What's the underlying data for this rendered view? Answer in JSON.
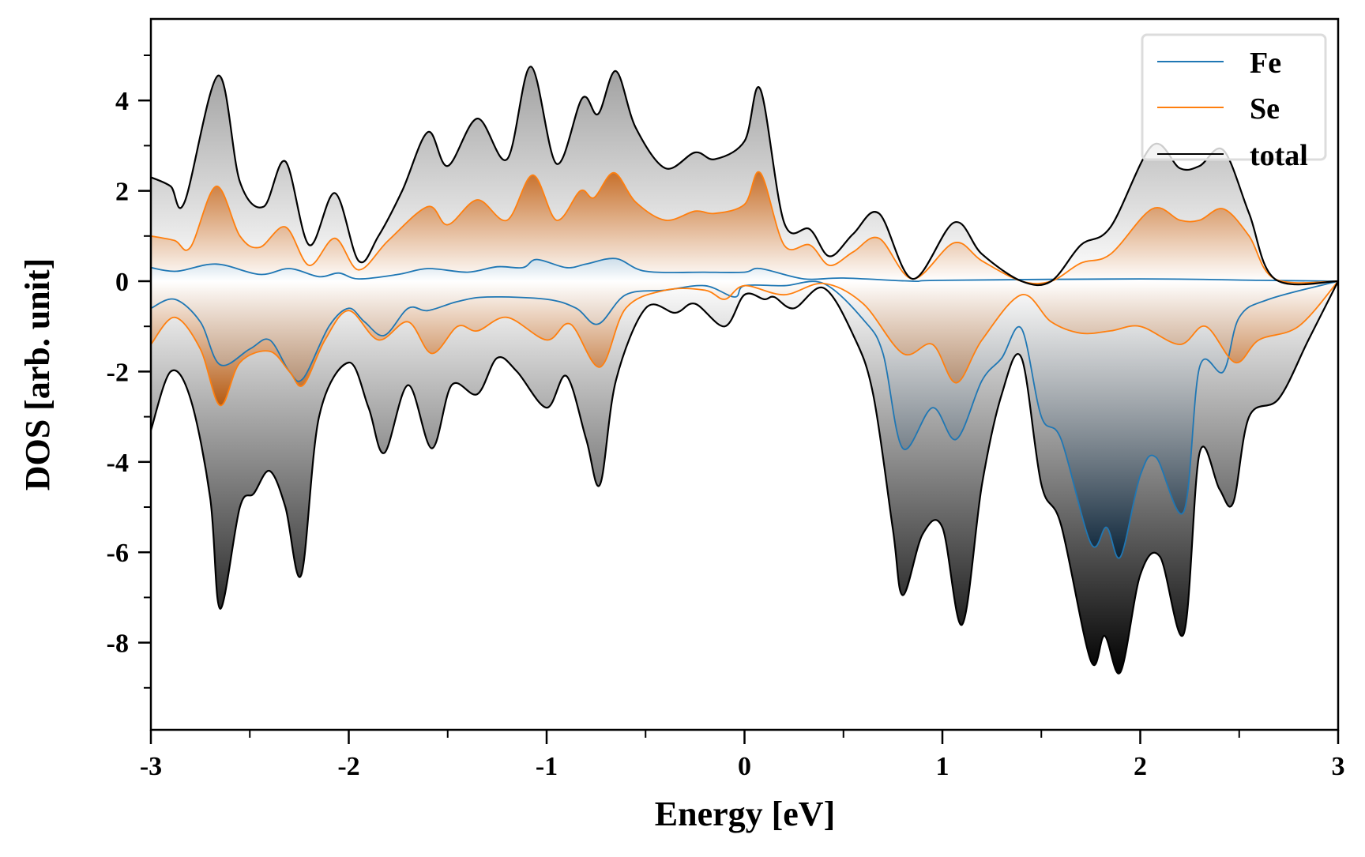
{
  "chart_data": {
    "type": "area",
    "xlabel": "Energy [eV]",
    "ylabel": "DOS [arb. unit]",
    "xlim": [
      -3,
      3
    ],
    "ylim": [
      -9.9,
      5.8
    ],
    "xticks": [
      -3,
      -2,
      -1,
      0,
      1,
      2,
      3
    ],
    "yticks": [
      -8,
      -6,
      -4,
      -2,
      0,
      2,
      4
    ],
    "grid": false,
    "legend_position": "top-right",
    "series": [
      {
        "name": "Fe",
        "color": "#1f77b4",
        "spin_up": [
          [
            -3,
            0.3
          ],
          [
            -2.87,
            0.22
          ],
          [
            -2.67,
            0.38
          ],
          [
            -2.45,
            0.15
          ],
          [
            -2.3,
            0.28
          ],
          [
            -2.15,
            0.1
          ],
          [
            -2.05,
            0.18
          ],
          [
            -1.95,
            0.05
          ],
          [
            -1.75,
            0.15
          ],
          [
            -1.6,
            0.28
          ],
          [
            -1.4,
            0.2
          ],
          [
            -1.25,
            0.32
          ],
          [
            -1.12,
            0.3
          ],
          [
            -1.05,
            0.48
          ],
          [
            -0.9,
            0.3
          ],
          [
            -0.8,
            0.38
          ],
          [
            -0.65,
            0.5
          ],
          [
            -0.5,
            0.22
          ],
          [
            -0.2,
            0.2
          ],
          [
            0,
            0.2
          ],
          [
            0.08,
            0.28
          ],
          [
            0.3,
            0.05
          ],
          [
            0.5,
            0.07
          ],
          [
            0.85,
            0.0
          ],
          [
            1.0,
            0.02
          ],
          [
            2.0,
            0.05
          ],
          [
            2.6,
            0.02
          ],
          [
            3,
            0
          ]
        ],
        "spin_down": [
          [
            -3,
            -0.6
          ],
          [
            -2.88,
            -0.4
          ],
          [
            -2.75,
            -0.9
          ],
          [
            -2.65,
            -1.85
          ],
          [
            -2.5,
            -1.5
          ],
          [
            -2.4,
            -1.3
          ],
          [
            -2.3,
            -2.0
          ],
          [
            -2.23,
            -2.15
          ],
          [
            -2.1,
            -1.0
          ],
          [
            -2.0,
            -0.6
          ],
          [
            -1.92,
            -0.9
          ],
          [
            -1.82,
            -1.2
          ],
          [
            -1.7,
            -0.6
          ],
          [
            -1.6,
            -0.65
          ],
          [
            -1.45,
            -0.45
          ],
          [
            -1.3,
            -0.35
          ],
          [
            -1.0,
            -0.4
          ],
          [
            -0.85,
            -0.6
          ],
          [
            -0.74,
            -0.95
          ],
          [
            -0.6,
            -0.3
          ],
          [
            -0.4,
            -0.2
          ],
          [
            -0.2,
            -0.1
          ],
          [
            -0.05,
            -0.35
          ],
          [
            0,
            -0.1
          ],
          [
            0.2,
            -0.1
          ],
          [
            0.4,
            -0.05
          ],
          [
            0.6,
            -0.85
          ],
          [
            0.7,
            -1.6
          ],
          [
            0.8,
            -3.7
          ],
          [
            0.95,
            -2.8
          ],
          [
            1.07,
            -3.5
          ],
          [
            1.2,
            -2.2
          ],
          [
            1.3,
            -1.7
          ],
          [
            1.4,
            -1.05
          ],
          [
            1.5,
            -3.0
          ],
          [
            1.6,
            -3.5
          ],
          [
            1.75,
            -5.8
          ],
          [
            1.83,
            -5.45
          ],
          [
            1.9,
            -6.1
          ],
          [
            2.0,
            -4.3
          ],
          [
            2.08,
            -3.9
          ],
          [
            2.22,
            -5.1
          ],
          [
            2.3,
            -1.9
          ],
          [
            2.42,
            -2.0
          ],
          [
            2.5,
            -0.8
          ],
          [
            2.65,
            -0.4
          ],
          [
            3,
            0
          ]
        ]
      },
      {
        "name": "Se",
        "color": "#ff7f0e",
        "spin_up": [
          [
            -3,
            1.0
          ],
          [
            -2.88,
            0.9
          ],
          [
            -2.8,
            0.75
          ],
          [
            -2.67,
            2.1
          ],
          [
            -2.55,
            1.0
          ],
          [
            -2.45,
            0.75
          ],
          [
            -2.32,
            1.2
          ],
          [
            -2.2,
            0.35
          ],
          [
            -2.07,
            0.95
          ],
          [
            -1.95,
            0.25
          ],
          [
            -1.8,
            0.9
          ],
          [
            -1.6,
            1.65
          ],
          [
            -1.5,
            1.25
          ],
          [
            -1.35,
            1.8
          ],
          [
            -1.2,
            1.35
          ],
          [
            -1.07,
            2.35
          ],
          [
            -0.95,
            1.35
          ],
          [
            -0.83,
            2.0
          ],
          [
            -0.76,
            1.85
          ],
          [
            -0.66,
            2.4
          ],
          [
            -0.55,
            1.75
          ],
          [
            -0.4,
            1.35
          ],
          [
            -0.25,
            1.55
          ],
          [
            -0.15,
            1.5
          ],
          [
            0,
            1.7
          ],
          [
            0.08,
            2.4
          ],
          [
            0.2,
            0.8
          ],
          [
            0.33,
            0.8
          ],
          [
            0.43,
            0.35
          ],
          [
            0.55,
            0.65
          ],
          [
            0.68,
            0.95
          ],
          [
            0.85,
            0.05
          ],
          [
            1.06,
            0.85
          ],
          [
            1.2,
            0.45
          ],
          [
            1.4,
            0.0
          ],
          [
            1.55,
            0.0
          ],
          [
            1.7,
            0.4
          ],
          [
            1.85,
            0.6
          ],
          [
            2.06,
            1.6
          ],
          [
            2.2,
            1.35
          ],
          [
            2.3,
            1.35
          ],
          [
            2.42,
            1.6
          ],
          [
            2.55,
            1.0
          ],
          [
            2.68,
            0.05
          ],
          [
            3,
            0
          ]
        ],
        "spin_down": [
          [
            -3,
            -1.4
          ],
          [
            -2.88,
            -0.8
          ],
          [
            -2.75,
            -1.5
          ],
          [
            -2.65,
            -2.75
          ],
          [
            -2.55,
            -1.8
          ],
          [
            -2.4,
            -1.55
          ],
          [
            -2.3,
            -2.0
          ],
          [
            -2.23,
            -2.3
          ],
          [
            -2.12,
            -1.3
          ],
          [
            -2.0,
            -0.65
          ],
          [
            -1.85,
            -1.3
          ],
          [
            -1.7,
            -0.9
          ],
          [
            -1.58,
            -1.6
          ],
          [
            -1.45,
            -1.0
          ],
          [
            -1.35,
            -1.1
          ],
          [
            -1.2,
            -0.8
          ],
          [
            -1.0,
            -1.3
          ],
          [
            -0.88,
            -0.95
          ],
          [
            -0.73,
            -1.9
          ],
          [
            -0.6,
            -0.6
          ],
          [
            -0.4,
            -0.2
          ],
          [
            -0.2,
            -0.2
          ],
          [
            -0.1,
            -0.4
          ],
          [
            0,
            -0.1
          ],
          [
            0.2,
            -0.3
          ],
          [
            0.4,
            -0.05
          ],
          [
            0.6,
            -0.5
          ],
          [
            0.8,
            -1.6
          ],
          [
            0.95,
            -1.4
          ],
          [
            1.07,
            -2.25
          ],
          [
            1.2,
            -1.3
          ],
          [
            1.4,
            -0.3
          ],
          [
            1.55,
            -0.9
          ],
          [
            1.7,
            -1.15
          ],
          [
            1.85,
            -1.1
          ],
          [
            2.0,
            -1.0
          ],
          [
            2.2,
            -1.4
          ],
          [
            2.33,
            -1.0
          ],
          [
            2.48,
            -1.8
          ],
          [
            2.6,
            -1.3
          ],
          [
            2.8,
            -1.0
          ],
          [
            3,
            0
          ]
        ]
      },
      {
        "name": "total",
        "color": "#000000",
        "spin_up": [
          [
            -3,
            2.3
          ],
          [
            -2.9,
            2.1
          ],
          [
            -2.83,
            1.75
          ],
          [
            -2.66,
            4.55
          ],
          [
            -2.55,
            2.2
          ],
          [
            -2.43,
            1.65
          ],
          [
            -2.32,
            2.65
          ],
          [
            -2.2,
            0.8
          ],
          [
            -2.07,
            1.95
          ],
          [
            -1.95,
            0.45
          ],
          [
            -1.85,
            1.0
          ],
          [
            -1.73,
            2.0
          ],
          [
            -1.6,
            3.3
          ],
          [
            -1.5,
            2.55
          ],
          [
            -1.35,
            3.6
          ],
          [
            -1.2,
            2.7
          ],
          [
            -1.08,
            4.75
          ],
          [
            -0.95,
            2.6
          ],
          [
            -0.82,
            4.05
          ],
          [
            -0.74,
            3.7
          ],
          [
            -0.65,
            4.65
          ],
          [
            -0.55,
            3.4
          ],
          [
            -0.4,
            2.5
          ],
          [
            -0.25,
            2.85
          ],
          [
            -0.15,
            2.7
          ],
          [
            0,
            3.1
          ],
          [
            0.08,
            4.25
          ],
          [
            0.2,
            1.3
          ],
          [
            0.33,
            1.15
          ],
          [
            0.43,
            0.55
          ],
          [
            0.55,
            1.05
          ],
          [
            0.68,
            1.5
          ],
          [
            0.85,
            0.05
          ],
          [
            1.06,
            1.3
          ],
          [
            1.2,
            0.6
          ],
          [
            1.4,
            0.0
          ],
          [
            1.55,
            0.0
          ],
          [
            1.7,
            0.8
          ],
          [
            1.85,
            1.2
          ],
          [
            2.06,
            3.0
          ],
          [
            2.2,
            2.5
          ],
          [
            2.3,
            2.55
          ],
          [
            2.42,
            2.9
          ],
          [
            2.55,
            1.5
          ],
          [
            2.68,
            0.05
          ],
          [
            3,
            0
          ]
        ],
        "spin_down": [
          [
            -3,
            -3.3
          ],
          [
            -2.9,
            -2.0
          ],
          [
            -2.8,
            -2.6
          ],
          [
            -2.7,
            -4.8
          ],
          [
            -2.65,
            -7.25
          ],
          [
            -2.55,
            -5.0
          ],
          [
            -2.48,
            -4.7
          ],
          [
            -2.4,
            -4.2
          ],
          [
            -2.32,
            -5.0
          ],
          [
            -2.24,
            -6.5
          ],
          [
            -2.15,
            -3.0
          ],
          [
            -2.0,
            -1.8
          ],
          [
            -1.9,
            -2.8
          ],
          [
            -1.82,
            -3.8
          ],
          [
            -1.7,
            -2.3
          ],
          [
            -1.58,
            -3.7
          ],
          [
            -1.48,
            -2.3
          ],
          [
            -1.35,
            -2.5
          ],
          [
            -1.25,
            -1.7
          ],
          [
            -1.15,
            -2.0
          ],
          [
            -1.0,
            -2.8
          ],
          [
            -0.9,
            -2.1
          ],
          [
            -0.8,
            -3.5
          ],
          [
            -0.73,
            -4.5
          ],
          [
            -0.65,
            -2.2
          ],
          [
            -0.5,
            -0.6
          ],
          [
            -0.35,
            -0.7
          ],
          [
            -0.25,
            -0.5
          ],
          [
            -0.1,
            -1.0
          ],
          [
            0,
            -0.3
          ],
          [
            0.1,
            -0.4
          ],
          [
            0.15,
            -0.35
          ],
          [
            0.25,
            -0.6
          ],
          [
            0.4,
            -0.15
          ],
          [
            0.55,
            -1.2
          ],
          [
            0.65,
            -2.5
          ],
          [
            0.75,
            -5.5
          ],
          [
            0.8,
            -6.95
          ],
          [
            0.9,
            -5.6
          ],
          [
            1.0,
            -5.45
          ],
          [
            1.1,
            -7.6
          ],
          [
            1.2,
            -4.5
          ],
          [
            1.3,
            -2.5
          ],
          [
            1.4,
            -1.7
          ],
          [
            1.5,
            -4.5
          ],
          [
            1.6,
            -5.4
          ],
          [
            1.75,
            -8.4
          ],
          [
            1.82,
            -7.85
          ],
          [
            1.9,
            -8.65
          ],
          [
            2.0,
            -6.5
          ],
          [
            2.1,
            -6.1
          ],
          [
            2.22,
            -7.8
          ],
          [
            2.3,
            -3.8
          ],
          [
            2.4,
            -4.6
          ],
          [
            2.47,
            -4.9
          ],
          [
            2.55,
            -3.0
          ],
          [
            2.7,
            -2.6
          ],
          [
            2.85,
            -1.3
          ],
          [
            3,
            0
          ]
        ]
      }
    ]
  }
}
